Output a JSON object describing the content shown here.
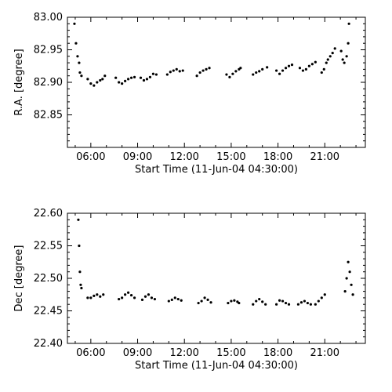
{
  "chart_data": [
    {
      "type": "scatter",
      "xlabel": "Start Time (11-Jun-04 04:30:00)",
      "ylabel": "R.A. [degree]",
      "x_unit": "hours",
      "xlim": [
        4.5,
        23.6
      ],
      "ylim": [
        82.8,
        83.0
      ],
      "x_ticks": [
        6,
        9,
        12,
        15,
        18,
        21
      ],
      "x_tick_labels": [
        "06:00",
        "09:00",
        "12:00",
        "15:00",
        "18:00",
        "21:00"
      ],
      "y_ticks": [
        82.85,
        82.9,
        82.95,
        83.0
      ],
      "y_tick_labels": [
        "82.85",
        "82.90",
        "82.95",
        "83.00"
      ],
      "grid": false,
      "series": [
        {
          "points": [
            [
              4.95,
              82.99
            ],
            [
              5.05,
              82.96
            ],
            [
              5.15,
              82.94
            ],
            [
              5.25,
              82.93
            ],
            [
              5.3,
              82.915
            ],
            [
              5.4,
              82.91
            ],
            [
              5.8,
              82.905
            ],
            [
              6.0,
              82.898
            ],
            [
              6.2,
              82.895
            ],
            [
              6.4,
              82.9
            ],
            [
              6.6,
              82.903
            ],
            [
              6.75,
              82.905
            ],
            [
              6.9,
              82.91
            ],
            [
              7.6,
              82.907
            ],
            [
              7.8,
              82.9
            ],
            [
              8.0,
              82.898
            ],
            [
              8.2,
              82.902
            ],
            [
              8.4,
              82.905
            ],
            [
              8.6,
              82.907
            ],
            [
              8.8,
              82.908
            ],
            [
              9.2,
              82.907
            ],
            [
              9.4,
              82.903
            ],
            [
              9.6,
              82.905
            ],
            [
              9.8,
              82.908
            ],
            [
              10.0,
              82.913
            ],
            [
              10.2,
              82.912
            ],
            [
              10.9,
              82.912
            ],
            [
              11.1,
              82.916
            ],
            [
              11.3,
              82.918
            ],
            [
              11.5,
              82.92
            ],
            [
              11.7,
              82.917
            ],
            [
              11.9,
              82.918
            ],
            [
              12.8,
              82.91
            ],
            [
              13.0,
              82.915
            ],
            [
              13.2,
              82.918
            ],
            [
              13.4,
              82.92
            ],
            [
              13.6,
              82.922
            ],
            [
              14.7,
              82.912
            ],
            [
              14.9,
              82.908
            ],
            [
              15.1,
              82.913
            ],
            [
              15.3,
              82.917
            ],
            [
              15.5,
              82.92
            ],
            [
              15.6,
              82.922
            ],
            [
              16.4,
              82.912
            ],
            [
              16.6,
              82.915
            ],
            [
              16.8,
              82.917
            ],
            [
              17.0,
              82.92
            ],
            [
              17.3,
              82.923
            ],
            [
              17.9,
              82.918
            ],
            [
              18.1,
              82.913
            ],
            [
              18.3,
              82.918
            ],
            [
              18.5,
              82.922
            ],
            [
              18.7,
              82.925
            ],
            [
              18.9,
              82.927
            ],
            [
              19.4,
              82.922
            ],
            [
              19.6,
              82.918
            ],
            [
              19.8,
              82.92
            ],
            [
              20.0,
              82.925
            ],
            [
              20.2,
              82.928
            ],
            [
              20.4,
              82.931
            ],
            [
              20.8,
              82.915
            ],
            [
              20.95,
              82.92
            ],
            [
              21.1,
              82.93
            ],
            [
              21.2,
              82.935
            ],
            [
              21.35,
              82.94
            ],
            [
              21.5,
              82.945
            ],
            [
              21.65,
              82.952
            ],
            [
              22.05,
              82.948
            ],
            [
              22.15,
              82.935
            ],
            [
              22.25,
              82.93
            ],
            [
              22.4,
              82.94
            ],
            [
              22.5,
              82.96
            ],
            [
              22.55,
              82.99
            ]
          ]
        }
      ]
    },
    {
      "type": "scatter",
      "xlabel": "Start Time (11-Jun-04 04:30:00)",
      "ylabel": "Dec [degree]",
      "x_unit": "hours",
      "xlim": [
        4.5,
        23.6
      ],
      "ylim": [
        22.4,
        22.6
      ],
      "x_ticks": [
        6,
        9,
        12,
        15,
        18,
        21
      ],
      "x_tick_labels": [
        "06:00",
        "09:00",
        "12:00",
        "15:00",
        "18:00",
        "21:00"
      ],
      "y_ticks": [
        22.4,
        22.45,
        22.5,
        22.55,
        22.6
      ],
      "y_tick_labels": [
        "22.40",
        "22.45",
        "22.50",
        "22.55",
        "22.60"
      ],
      "grid": false,
      "series": [
        {
          "points": [
            [
              5.2,
              22.59
            ],
            [
              5.25,
              22.55
            ],
            [
              5.3,
              22.51
            ],
            [
              5.35,
              22.49
            ],
            [
              5.4,
              22.485
            ],
            [
              5.8,
              22.47
            ],
            [
              6.0,
              22.47
            ],
            [
              6.2,
              22.473
            ],
            [
              6.4,
              22.475
            ],
            [
              6.6,
              22.472
            ],
            [
              6.8,
              22.475
            ],
            [
              7.8,
              22.468
            ],
            [
              8.0,
              22.47
            ],
            [
              8.2,
              22.475
            ],
            [
              8.4,
              22.478
            ],
            [
              8.6,
              22.474
            ],
            [
              8.8,
              22.47
            ],
            [
              9.3,
              22.467
            ],
            [
              9.5,
              22.472
            ],
            [
              9.7,
              22.475
            ],
            [
              9.9,
              22.47
            ],
            [
              10.1,
              22.468
            ],
            [
              11.0,
              22.465
            ],
            [
              11.2,
              22.467
            ],
            [
              11.4,
              22.47
            ],
            [
              11.6,
              22.468
            ],
            [
              11.8,
              22.466
            ],
            [
              12.9,
              22.462
            ],
            [
              13.1,
              22.465
            ],
            [
              13.3,
              22.47
            ],
            [
              13.5,
              22.467
            ],
            [
              13.7,
              22.463
            ],
            [
              14.8,
              22.462
            ],
            [
              15.0,
              22.465
            ],
            [
              15.2,
              22.466
            ],
            [
              15.4,
              22.464
            ],
            [
              15.5,
              22.462
            ],
            [
              16.4,
              22.46
            ],
            [
              16.6,
              22.465
            ],
            [
              16.8,
              22.468
            ],
            [
              17.0,
              22.464
            ],
            [
              17.2,
              22.46
            ],
            [
              17.9,
              22.46
            ],
            [
              18.1,
              22.466
            ],
            [
              18.3,
              22.465
            ],
            [
              18.5,
              22.462
            ],
            [
              18.7,
              22.46
            ],
            [
              19.3,
              22.46
            ],
            [
              19.5,
              22.463
            ],
            [
              19.7,
              22.465
            ],
            [
              19.9,
              22.462
            ],
            [
              20.1,
              22.46
            ],
            [
              20.4,
              22.46
            ],
            [
              20.6,
              22.465
            ],
            [
              20.8,
              22.47
            ],
            [
              21.0,
              22.475
            ],
            [
              22.3,
              22.48
            ],
            [
              22.4,
              22.5
            ],
            [
              22.5,
              22.525
            ],
            [
              22.6,
              22.51
            ],
            [
              22.7,
              22.49
            ],
            [
              22.8,
              22.475
            ]
          ]
        }
      ]
    }
  ]
}
